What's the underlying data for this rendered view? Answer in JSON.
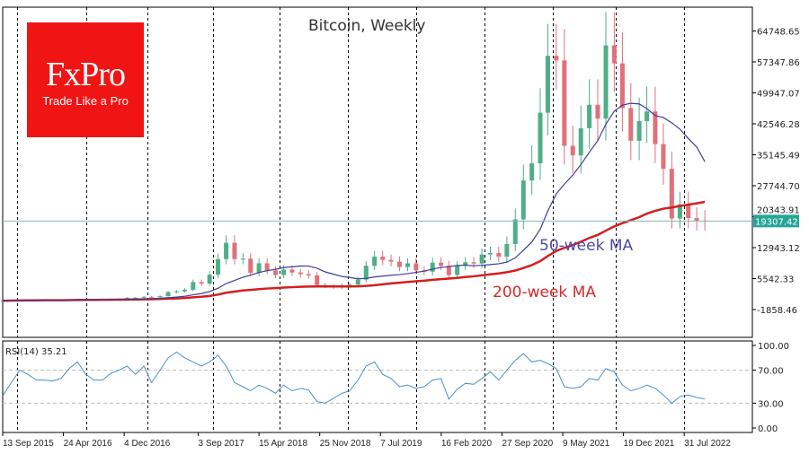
{
  "chart_data": {
    "type": "candlestick",
    "title": "Bitcoin, Weekly",
    "price_axis": {
      "ticks": [
        64748.65,
        57347.86,
        49947.07,
        42546.28,
        35145.49,
        27744.7,
        20343.91,
        12943.12,
        5542.33,
        -1858.46
      ],
      "tick_labels": [
        "64748.65",
        "57347.86",
        "49947.07",
        "42546.28",
        "35145.49",
        "27744.70",
        "20343.91",
        "12943.12",
        "5542.33",
        "-1858.46"
      ],
      "ylim": [
        -8508,
        70433
      ]
    },
    "current_price": {
      "value": 19307.42,
      "label": "19307.42",
      "color": "#26a69a"
    },
    "x_axis": {
      "tick_labels": [
        "13 Sep 2015",
        "24 Apr 2016",
        "4 Dec 2016",
        "3 Sep 2017",
        "15 Apr 2018",
        "25 Nov 2018",
        "7 Jul 2019",
        "16 Feb 2020",
        "27 Sep 2020",
        "9 May 2021",
        "19 Dec 2021",
        "31 Jul 2022"
      ],
      "tick_dates": [
        "2015-09-13",
        "2016-04-24",
        "2016-12-04",
        "2017-09-03",
        "2018-04-15",
        "2018-11-25",
        "2019-07-07",
        "2020-02-16",
        "2020-09-27",
        "2021-05-09",
        "2021-12-19",
        "2022-07-31"
      ],
      "grid_dates": [
        "2015-11-05",
        "2016-07-17",
        "2017-02-26",
        "2017-10-28",
        "2018-07-01",
        "2019-03-10",
        "2019-11-17",
        "2020-07-26",
        "2021-04-04",
        "2021-11-21",
        "2022-07-31"
      ]
    },
    "series_dates_start": "2015-09",
    "closes": [
      236,
      314,
      377,
      430,
      368,
      437,
      416,
      448,
      531,
      673,
      624,
      575,
      609,
      700,
      742,
      963,
      970,
      1190,
      1080,
      1350,
      2300,
      2480,
      2870,
      4700,
      4340,
      6470,
      10200,
      14100,
      10200,
      10300,
      6900,
      9200,
      7500,
      6400,
      7700,
      7000,
      6600,
      6300,
      4000,
      3700,
      3450,
      3800,
      4100,
      5300,
      8600,
      10800,
      10000,
      9600,
      8300,
      9200,
      7500,
      7200,
      9350,
      8600,
      6400,
      8600,
      9450,
      9140,
      11300,
      11650,
      10800,
      13800,
      19700,
      29000,
      33100,
      45200,
      58800,
      57700,
      37300,
      35000,
      41500,
      47100,
      43800,
      61300,
      57000,
      46300,
      38500,
      43200,
      45500,
      37700,
      31800,
      19900,
      23300,
      20000,
      19400,
      19307.42
    ],
    "up_color": "#4fae86",
    "down_color": "#e0707a",
    "ma50": {
      "label": "50-week MA",
      "color": "#3c3c9a",
      "window_months": 12
    },
    "ma200": {
      "label": "200-week MA",
      "color": "#d41e1e",
      "window_months": 46
    },
    "rsi": {
      "label": "RSI(14) 35.21",
      "ticks": [
        100,
        70,
        30,
        0
      ],
      "tick_labels": [
        "100.00",
        "70.00",
        "30.00",
        "0.00"
      ],
      "ylim": [
        0,
        100
      ],
      "color": "#4a8fc4",
      "values": [
        40,
        55,
        70,
        65,
        58,
        58,
        57,
        60,
        72,
        80,
        65,
        58,
        58,
        66,
        70,
        75,
        65,
        75,
        55,
        70,
        85,
        92,
        85,
        80,
        75,
        80,
        88,
        75,
        55,
        50,
        45,
        52,
        48,
        42,
        52,
        45,
        48,
        46,
        32,
        30,
        36,
        42,
        45,
        58,
        75,
        80,
        65,
        60,
        50,
        52,
        48,
        50,
        58,
        60,
        35,
        47,
        54,
        53,
        60,
        68,
        58,
        70,
        82,
        90,
        80,
        82,
        78,
        72,
        50,
        48,
        50,
        60,
        58,
        72,
        68,
        52,
        45,
        48,
        52,
        48,
        40,
        30,
        38,
        40,
        37,
        35.21
      ]
    }
  },
  "branding": {
    "logo": "FxPro",
    "tagline": "Trade Like a Pro"
  }
}
